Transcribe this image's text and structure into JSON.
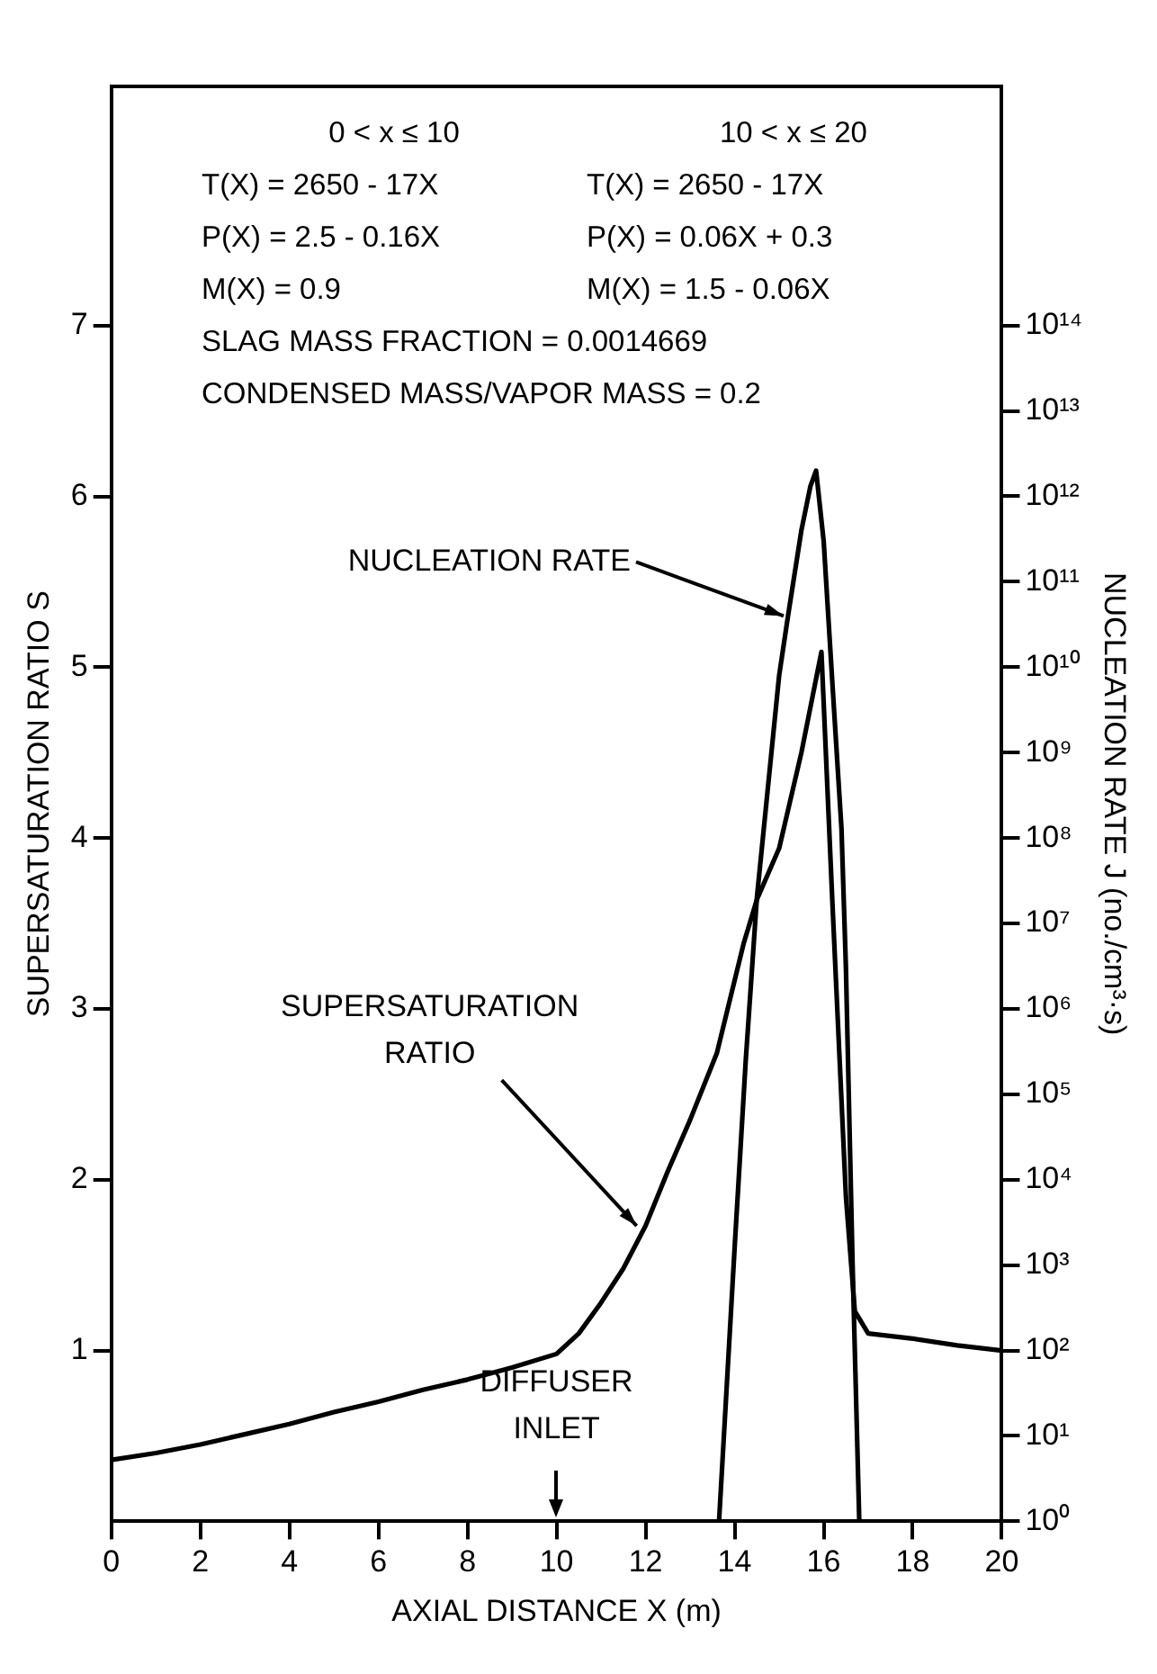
{
  "chart_data": {
    "type": "line",
    "xlabel": "AXIAL DISTANCE X (m)",
    "ylabel": "SUPERSATURATION RATIO S",
    "y2label": "NUCLEATION RATE J (no./cm³·s)",
    "series": [
      {
        "color": "#000000",
        "x": [
          0,
          1,
          2,
          3,
          4,
          5,
          6,
          7,
          8,
          9,
          10,
          10.5,
          11,
          11.5,
          12,
          12.5,
          13,
          13.6,
          14.2,
          14.5,
          15,
          15.5,
          15.95,
          16.2,
          16.5,
          16.7,
          17,
          18,
          19,
          20
        ],
        "values": [
          0.36,
          0.4,
          0.45,
          0.51,
          0.57,
          0.64,
          0.7,
          0.77,
          0.83,
          0.9,
          0.98,
          1.1,
          1.28,
          1.48,
          1.73,
          2.05,
          2.35,
          2.74,
          3.38,
          3.64,
          3.94,
          4.5,
          5.09,
          3.6,
          1.9,
          1.23,
          1.1,
          1.07,
          1.03,
          1.0
        ]
      },
      {
        "color": "#000000",
        "axis": "y2",
        "x": [
          13.65,
          14,
          14.25,
          14.5,
          15,
          15.2,
          15.5,
          15.7,
          15.83,
          16,
          16.2,
          16.4,
          16.5,
          16.65,
          16.8
        ],
        "values": [
          1,
          1600.0,
          250000.0,
          20000000.0,
          8000000000.0,
          40000000000.0,
          400000000000.0,
          1300000000000.0,
          2000000000000.0,
          300000000000.0,
          6000000000.0,
          130000000.0,
          3000000.0,
          1000.0,
          1
        ]
      }
    ],
    "xlim": [
      0,
      20
    ],
    "xticks": [
      0,
      2,
      4,
      6,
      8,
      10,
      12,
      14,
      16,
      18,
      20
    ],
    "ylim": [
      0,
      8.4
    ],
    "yticks": [
      1,
      2,
      3,
      4,
      5,
      6,
      7
    ],
    "log": "y2",
    "y2lim": [
      1,
      6.3e+16
    ],
    "y2ticks": [
      {
        "value": 1,
        "label": "10⁰"
      },
      {
        "value": 10.0,
        "label": "10¹"
      },
      {
        "value": 100.0,
        "label": "10²"
      },
      {
        "value": 1000.0,
        "label": "10³"
      },
      {
        "value": 10000.0,
        "label": "10⁴"
      },
      {
        "value": 100000.0,
        "label": "10⁵"
      },
      {
        "value": 1000000.0,
        "label": "10⁶"
      },
      {
        "value": 10000000.0,
        "label": "10⁷"
      },
      {
        "value": 100000000.0,
        "label": "10⁸"
      },
      {
        "value": 1000000000.0,
        "label": "10⁹"
      },
      {
        "value": 10000000000.0,
        "label": "10¹⁰"
      },
      {
        "value": 100000000000.0,
        "label": "10¹¹"
      },
      {
        "value": 1000000000000.0,
        "label": "10¹²"
      },
      {
        "value": 10000000000000.0,
        "label": "10¹³"
      },
      {
        "value": 100000000000000.0,
        "label": "10¹⁴"
      }
    ],
    "grid": false,
    "legend": false,
    "annotations": [
      "0 < x ≤ 10",
      "10 < x ≤ 20",
      "T(X) = 2650 - 17X",
      "T(X) = 2650 - 17X",
      "P(X) = 2.5 - 0.16X",
      "P(X) = 0.06X + 0.3",
      "M(X) = 0.9",
      "M(X) = 1.5 - 0.06X",
      "SLAG MASS FRACTION = 0.0014669",
      "CONDENSED MASS/VAPOR MASS = 0.2",
      {
        "text": "NUCLEATION RATE",
        "x": 15.1,
        "y": 5.3
      },
      {
        "text": "SUPERSATURATION\nRATIO",
        "x": 11.8,
        "y": 1.73
      },
      "DIFFUSER\nINLET"
    ]
  }
}
